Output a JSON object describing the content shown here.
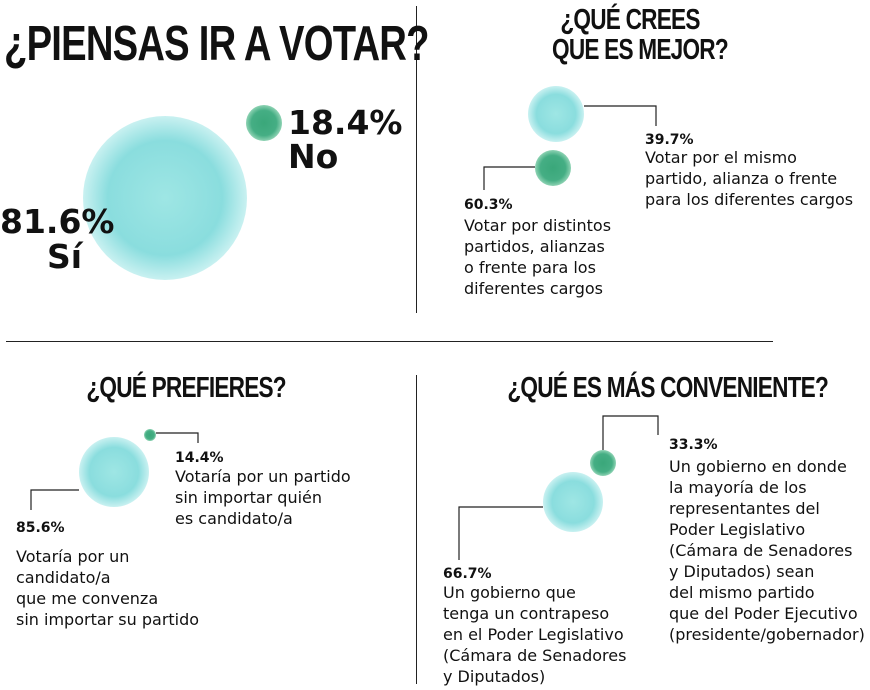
{
  "colors": {
    "si": "#7fd6d9",
    "no": "#3aa77a",
    "lines": "#222222"
  },
  "chart_data": [
    {
      "type": "bubble",
      "title": "¿PIENSAS IR A VOTAR?",
      "slices": [
        {
          "label": "Sí",
          "value": 81.6,
          "value_text": "81.6%",
          "color": "#7fd6d9"
        },
        {
          "label": "No",
          "value": 18.4,
          "value_text": "18.4%",
          "color": "#3aa77a"
        }
      ]
    },
    {
      "type": "bubble",
      "title_lines": [
        "¿QUÉ CREES",
        "QUE ES MEJOR?"
      ],
      "slices": [
        {
          "value": 39.7,
          "value_text": "39.7%",
          "color": "#7fd6d9",
          "label_lines": [
            "Votar por el mismo",
            "partido, alianza o frente",
            "para los diferentes cargos"
          ]
        },
        {
          "value": 60.3,
          "value_text": "60.3%",
          "color": "#3aa77a",
          "label_lines": [
            "Votar por distintos",
            "partidos, alianzas",
            "o frente para los",
            "diferentes cargos"
          ]
        }
      ]
    },
    {
      "type": "bubble",
      "title": "¿QUÉ PREFIERES?",
      "slices": [
        {
          "value": 85.6,
          "value_text": "85.6%",
          "color": "#7fd6d9",
          "label_lines": [
            "Votaría por un",
            "candidato/a",
            "que me convenza",
            "sin importar su partido"
          ]
        },
        {
          "value": 14.4,
          "value_text": "14.4%",
          "color": "#3aa77a",
          "label_lines": [
            "Votaría por un partido",
            "sin importar quién",
            "es candidato/a"
          ]
        }
      ]
    },
    {
      "type": "bubble",
      "title": "¿QUÉ ES MÁS CONVENIENTE?",
      "slices": [
        {
          "value": 66.7,
          "value_text": "66.7%",
          "color": "#7fd6d9",
          "label_lines": [
            "Un gobierno que",
            "tenga un contrapeso",
            "en el Poder Legislativo",
            "(Cámara de Senadores",
            "y Diputados)"
          ]
        },
        {
          "value": 33.3,
          "value_text": "33.3%",
          "color": "#3aa77a",
          "label_lines": [
            "Un gobierno en donde",
            "la mayoría de los",
            "representantes del",
            "Poder Legislativo",
            "(Cámara de Senadores",
            "y Diputados) sean",
            "del mismo partido",
            "que del Poder Ejecutivo",
            "(presidente/gobernador)"
          ]
        }
      ]
    }
  ]
}
